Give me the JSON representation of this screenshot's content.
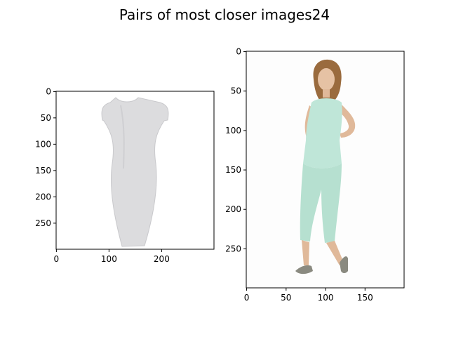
{
  "title": "Pairs of most closer images24",
  "chart_data": [
    {
      "type": "image",
      "image": "dress-product-photo",
      "image_colors": {
        "dress": "#dcdcde",
        "background": "#ffffff"
      },
      "xlim": [
        0,
        299
      ],
      "ylim": [
        299,
        0
      ],
      "xticks": [
        0,
        100,
        200
      ],
      "yticks": [
        0,
        50,
        100,
        150,
        200,
        250
      ]
    },
    {
      "type": "image",
      "image": "model-in-mint-jumpsuit",
      "image_colors": {
        "outfit": "#bfe6d8",
        "skin": "#e0b99a",
        "hair": "#9a6b3e",
        "shoes": "#8a8a80",
        "background": "#fdfdfd"
      },
      "xlim": [
        0,
        199
      ],
      "ylim": [
        299,
        0
      ],
      "xticks": [
        0,
        50,
        100,
        150
      ],
      "yticks": [
        0,
        50,
        100,
        150,
        200,
        250
      ]
    }
  ]
}
